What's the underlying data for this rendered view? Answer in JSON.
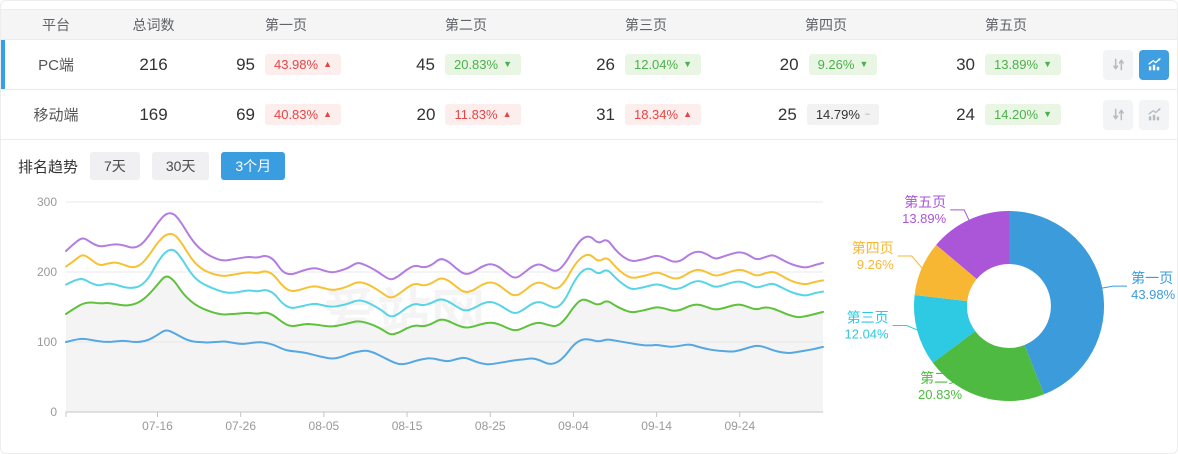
{
  "colors": {
    "accent_blue": "#35a0e8",
    "active_tab_blue": "#3a9de0",
    "up_red": "#e64545",
    "up_red_bg": "#fdeeee",
    "down_green": "#4cb14c",
    "down_green_bg": "#e9f6e4",
    "flat_gray_bg": "#f2f2f3",
    "icon_gray": "#b7bbc0",
    "icon_active_bg": "#3f9fe0"
  },
  "table": {
    "headers": [
      "平台",
      "总词数",
      "第一页",
      "第二页",
      "第三页",
      "第四页",
      "第五页"
    ],
    "rows": [
      {
        "platform": "PC端",
        "total": "216",
        "selected": true,
        "chart_active": true,
        "pages": [
          {
            "count": "95",
            "pct": "43.98%",
            "dir": "up"
          },
          {
            "count": "45",
            "pct": "20.83%",
            "dir": "down"
          },
          {
            "count": "26",
            "pct": "12.04%",
            "dir": "down"
          },
          {
            "count": "20",
            "pct": "9.26%",
            "dir": "down"
          },
          {
            "count": "30",
            "pct": "13.89%",
            "dir": "down"
          }
        ]
      },
      {
        "platform": "移动端",
        "total": "169",
        "selected": false,
        "chart_active": false,
        "pages": [
          {
            "count": "69",
            "pct": "40.83%",
            "dir": "up"
          },
          {
            "count": "20",
            "pct": "11.83%",
            "dir": "up"
          },
          {
            "count": "31",
            "pct": "18.34%",
            "dir": "up"
          },
          {
            "count": "25",
            "pct": "14.79%",
            "dir": "flat"
          },
          {
            "count": "24",
            "pct": "14.20%",
            "dir": "down"
          }
        ]
      }
    ]
  },
  "trend": {
    "label": "排名趋势",
    "tabs": [
      {
        "label": "7天",
        "active": false
      },
      {
        "label": "30天",
        "active": false
      },
      {
        "label": "3个月",
        "active": true
      }
    ]
  },
  "watermark": "爱站网",
  "chart_data": [
    {
      "type": "line",
      "title": "排名趋势",
      "ylim": [
        0,
        300
      ],
      "y_ticks": [
        0,
        100,
        200,
        300
      ],
      "grid": "horizontal",
      "legend": "none",
      "x_tick_labels": [
        "07-16",
        "07-26",
        "08-05",
        "08-15",
        "08-25",
        "09-04",
        "09-14",
        "09-24"
      ],
      "x_tick_indices": [
        11,
        21,
        31,
        41,
        51,
        61,
        71,
        81
      ],
      "area_fill_series": "green",
      "area_fill_color": "#f4f4f5",
      "series": [
        {
          "name": "blue",
          "color": "#55a8e2",
          "values": [
            100,
            103,
            105,
            103,
            101,
            100,
            101,
            102,
            100,
            100,
            103,
            110,
            118,
            113,
            106,
            101,
            100,
            99,
            100,
            101,
            99,
            97,
            98,
            100,
            99,
            96,
            90,
            87,
            86,
            84,
            81,
            78,
            76,
            78,
            83,
            86,
            88,
            85,
            79,
            73,
            68,
            69,
            73,
            76,
            77,
            74,
            72,
            76,
            78,
            73,
            69,
            68,
            70,
            72,
            74,
            75,
            77,
            74,
            68,
            70,
            80,
            96,
            104,
            104,
            100,
            104,
            102,
            100,
            98,
            96,
            95,
            96,
            94,
            93,
            95,
            97,
            93,
            90,
            88,
            87,
            86,
            88,
            92,
            95,
            93,
            88,
            85,
            84,
            86,
            88,
            90,
            93
          ]
        },
        {
          "name": "green",
          "color": "#5fc13c",
          "values": [
            140,
            148,
            155,
            157,
            155,
            156,
            154,
            152,
            153,
            158,
            168,
            182,
            196,
            188,
            170,
            158,
            150,
            145,
            141,
            139,
            140,
            141,
            142,
            140,
            143,
            138,
            128,
            122,
            124,
            126,
            125,
            123,
            122,
            124,
            127,
            130,
            128,
            124,
            118,
            110,
            113,
            120,
            124,
            122,
            126,
            133,
            130,
            124,
            120,
            122,
            126,
            128,
            126,
            120,
            116,
            120,
            126,
            128,
            124,
            122,
            132,
            150,
            162,
            158,
            152,
            160,
            152,
            146,
            142,
            144,
            147,
            150,
            148,
            144,
            146,
            152,
            154,
            150,
            146,
            148,
            152,
            154,
            150,
            146,
            150,
            148,
            143,
            138,
            135,
            137,
            140,
            143
          ]
        },
        {
          "name": "cyan",
          "color": "#57d5e6",
          "values": [
            182,
            188,
            191,
            184,
            180,
            184,
            182,
            178,
            177,
            180,
            192,
            214,
            230,
            233,
            218,
            198,
            186,
            180,
            175,
            171,
            170,
            172,
            174,
            172,
            175,
            170,
            155,
            148,
            150,
            153,
            155,
            152,
            150,
            152,
            155,
            160,
            158,
            152,
            145,
            135,
            140,
            150,
            155,
            152,
            156,
            162,
            158,
            150,
            144,
            148,
            155,
            158,
            154,
            146,
            140,
            146,
            155,
            158,
            152,
            148,
            160,
            185,
            202,
            206,
            196,
            205,
            192,
            182,
            175,
            177,
            180,
            183,
            180,
            175,
            177,
            184,
            188,
            184,
            178,
            181,
            185,
            187,
            183,
            177,
            181,
            184,
            178,
            172,
            168,
            166,
            170,
            172
          ]
        },
        {
          "name": "yellow",
          "color": "#f6c234",
          "values": [
            208,
            216,
            226,
            218,
            209,
            212,
            214,
            210,
            206,
            210,
            224,
            242,
            254,
            255,
            240,
            220,
            207,
            200,
            196,
            194,
            196,
            198,
            200,
            198,
            202,
            196,
            180,
            172,
            174,
            178,
            180,
            177,
            174,
            176,
            180,
            186,
            184,
            178,
            170,
            162,
            168,
            178,
            184,
            180,
            184,
            192,
            188,
            178,
            170,
            174,
            182,
            186,
            182,
            172,
            165,
            172,
            182,
            186,
            180,
            175,
            186,
            208,
            222,
            226,
            214,
            222,
            208,
            197,
            191,
            193,
            196,
            200,
            196,
            190,
            192,
            200,
            204,
            200,
            194,
            197,
            201,
            204,
            200,
            194,
            198,
            201,
            195,
            188,
            184,
            182,
            186,
            188
          ]
        },
        {
          "name": "purple",
          "color": "#b37ce0",
          "values": [
            230,
            241,
            250,
            242,
            236,
            238,
            240,
            238,
            234,
            238,
            252,
            270,
            284,
            284,
            268,
            248,
            234,
            225,
            219,
            216,
            218,
            220,
            222,
            220,
            224,
            218,
            200,
            196,
            200,
            204,
            206,
            202,
            199,
            202,
            206,
            214,
            210,
            204,
            196,
            188,
            194,
            204,
            210,
            206,
            210,
            220,
            215,
            204,
            196,
            200,
            208,
            212,
            208,
            198,
            190,
            198,
            208,
            212,
            205,
            200,
            212,
            232,
            248,
            252,
            240,
            248,
            232,
            221,
            215,
            217,
            220,
            224,
            220,
            214,
            216,
            226,
            230,
            226,
            218,
            222,
            226,
            229,
            225,
            217,
            221,
            225,
            218,
            212,
            208,
            206,
            210,
            213
          ]
        }
      ]
    },
    {
      "type": "pie",
      "donut": true,
      "legend": "none",
      "slices": [
        {
          "label": "第一页",
          "value": 43.98,
          "display": "43.98%",
          "color": "#3b9bdb"
        },
        {
          "label": "第二页",
          "value": 20.83,
          "display": "20.83%",
          "color": "#4eba41"
        },
        {
          "label": "第三页",
          "value": 12.04,
          "display": "12.04%",
          "color": "#2ec9e3"
        },
        {
          "label": "第四页",
          "value": 9.26,
          "display": "9.26%",
          "color": "#f7b733"
        },
        {
          "label": "第五页",
          "value": 13.89,
          "display": "13.89%",
          "color": "#ab55d9"
        }
      ]
    }
  ]
}
